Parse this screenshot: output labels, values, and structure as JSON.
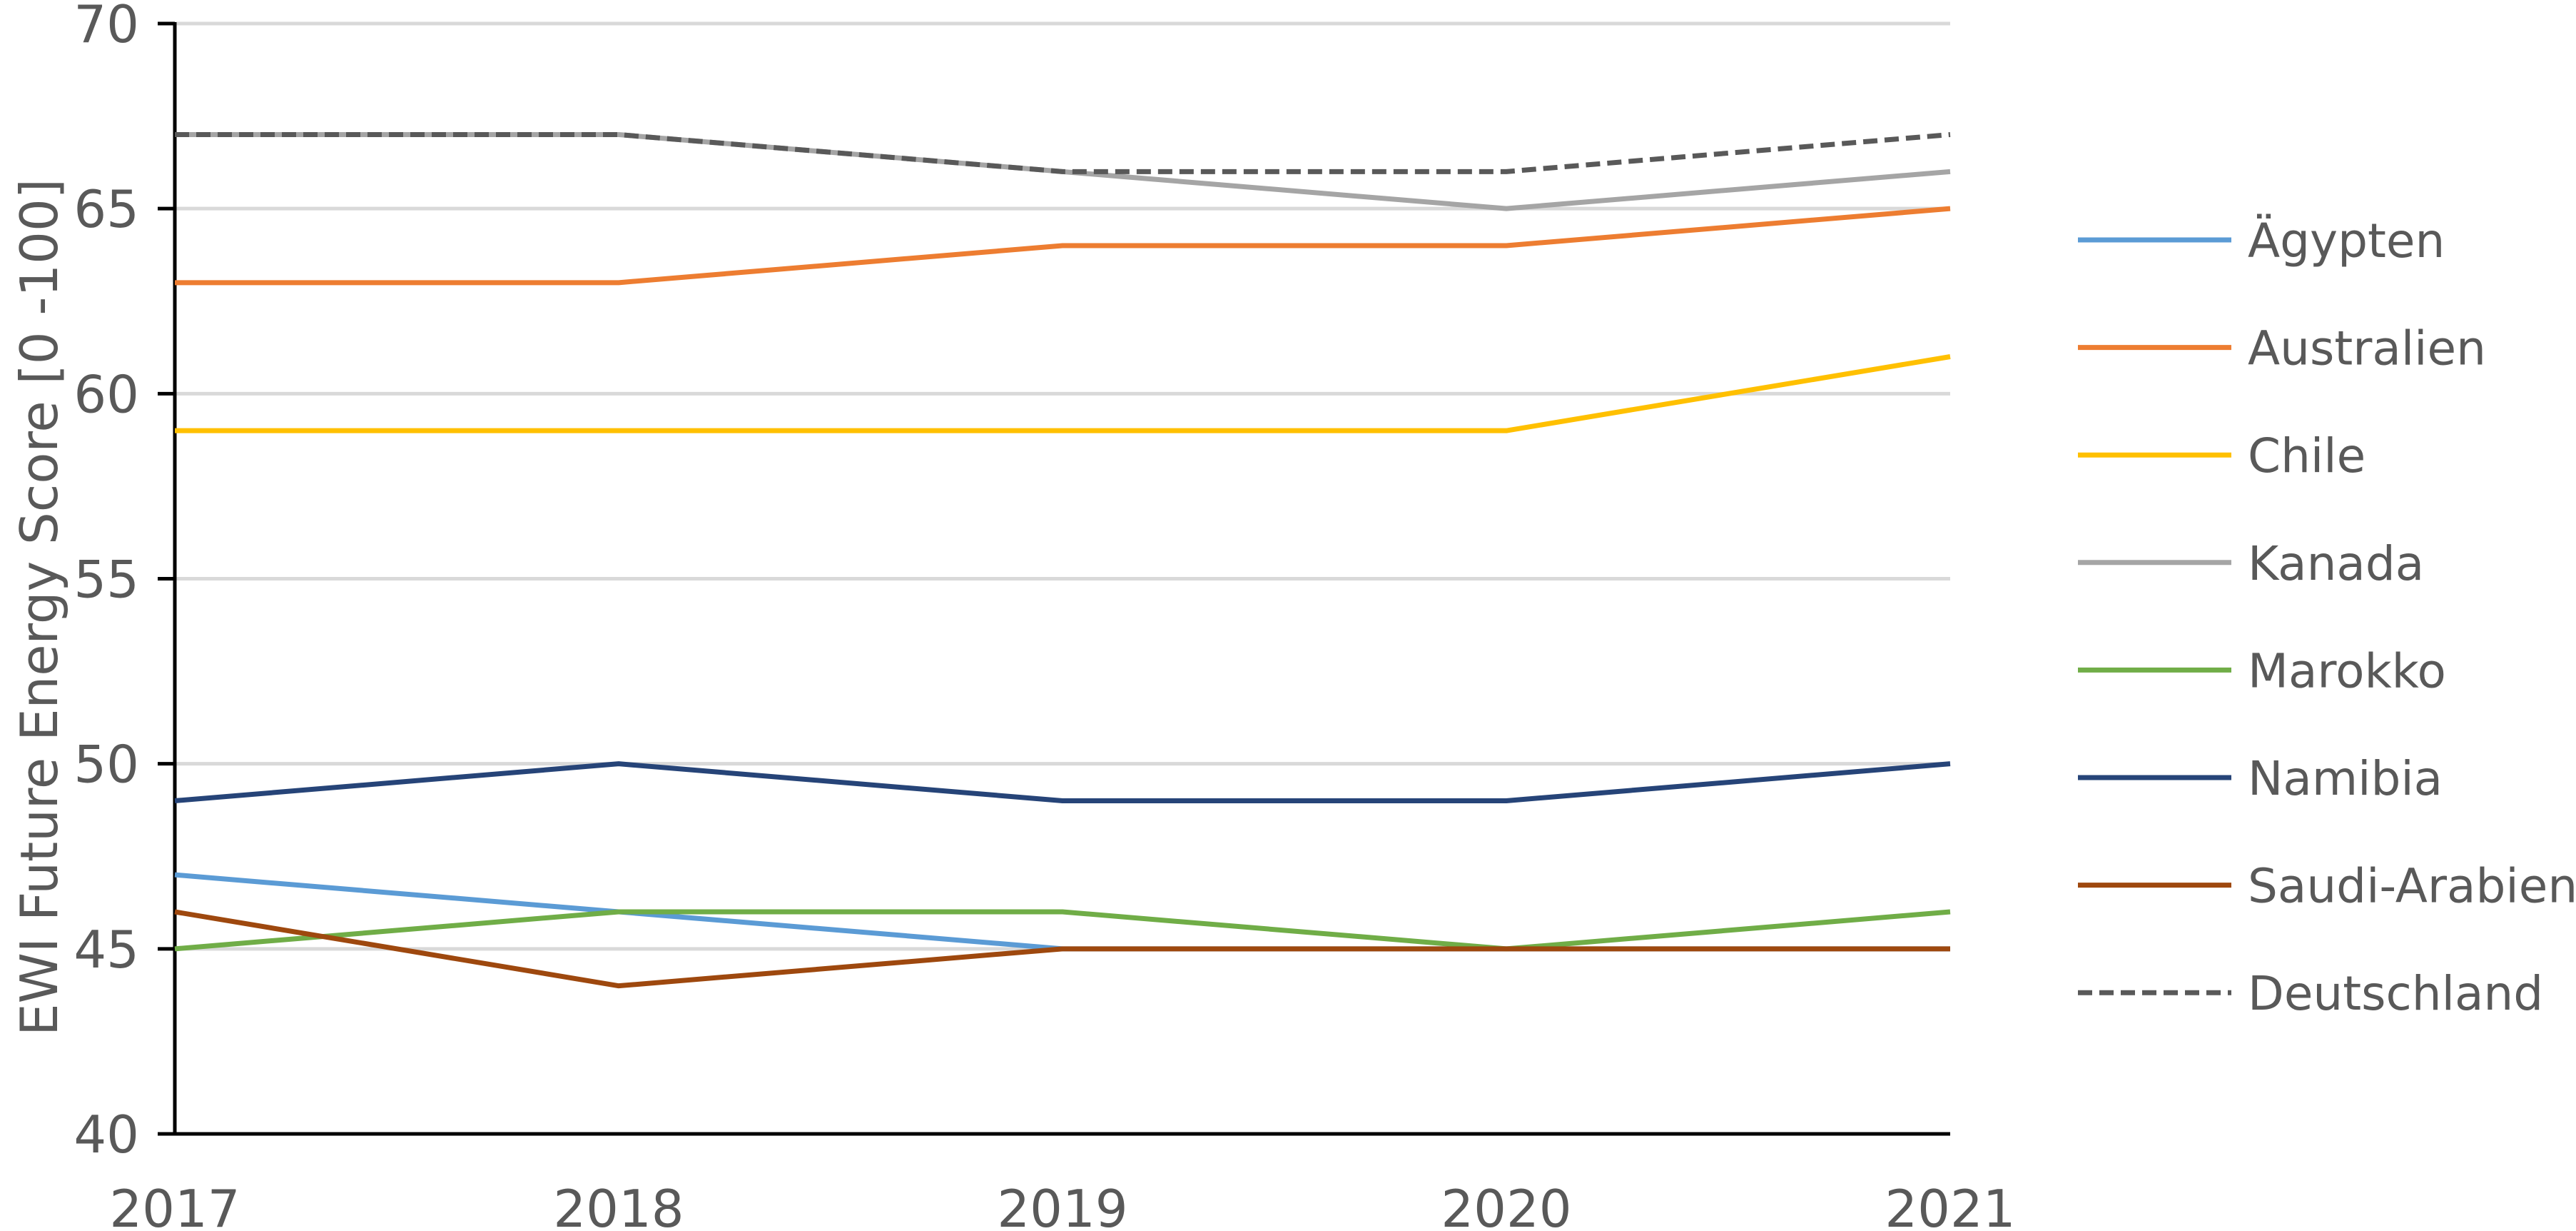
{
  "chart_data": {
    "type": "line",
    "title": "",
    "xlabel": "",
    "ylabel": "EWI Future Energy Score [0  -100]",
    "x": [
      "2017",
      "2018",
      "2019",
      "2020",
      "2021"
    ],
    "ylim": [
      40,
      70
    ],
    "yticks": [
      40,
      45,
      50,
      55,
      60,
      65,
      70
    ],
    "grid": true,
    "legend": "right",
    "series": [
      {
        "name": "Ägypten",
        "color": "#5B9BD5",
        "dash": false,
        "values": [
          47,
          46,
          45,
          45,
          45
        ]
      },
      {
        "name": "Australien",
        "color": "#ED7D31",
        "dash": false,
        "values": [
          63,
          63,
          64,
          64,
          65
        ]
      },
      {
        "name": "Chile",
        "color": "#FFC000",
        "dash": false,
        "values": [
          59,
          59,
          59,
          59,
          61
        ]
      },
      {
        "name": "Kanada",
        "color": "#A5A5A5",
        "dash": false,
        "values": [
          67,
          67,
          66,
          65,
          66
        ]
      },
      {
        "name": "Marokko",
        "color": "#70AD47",
        "dash": false,
        "values": [
          45,
          46,
          46,
          45,
          46
        ]
      },
      {
        "name": "Namibia",
        "color": "#264478",
        "dash": false,
        "values": [
          49,
          50,
          49,
          49,
          50
        ]
      },
      {
        "name": "Saudi-Arabien",
        "color": "#9E480E",
        "dash": false,
        "values": [
          46,
          44,
          45,
          45,
          45
        ]
      },
      {
        "name": "Deutschland",
        "color": "#595959",
        "dash": true,
        "values": [
          67,
          67,
          66,
          66,
          67
        ]
      }
    ]
  }
}
